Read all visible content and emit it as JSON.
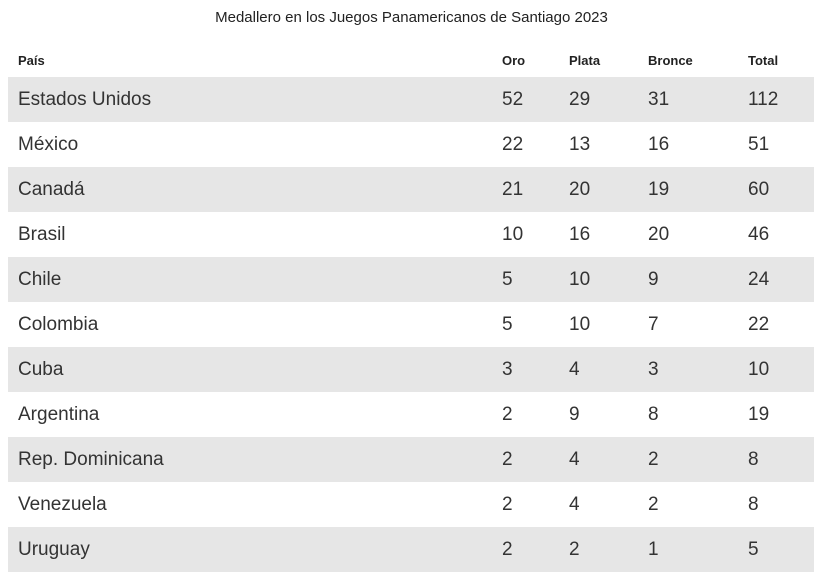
{
  "chart_data": {
    "type": "table",
    "title": "Medallero en los Juegos Panamericanos de Santiago 2023",
    "columns": [
      "País",
      "Oro",
      "Plata",
      "Bronce",
      "Total"
    ],
    "rows": [
      [
        "Estados Unidos",
        "52",
        "29",
        "31",
        "112"
      ],
      [
        "México",
        "22",
        "13",
        "16",
        "51"
      ],
      [
        "Canadá",
        "21",
        "20",
        "19",
        "60"
      ],
      [
        "Brasil",
        "10",
        "16",
        "20",
        "46"
      ],
      [
        "Chile",
        "5",
        "10",
        "9",
        "24"
      ],
      [
        "Colombia",
        "5",
        "10",
        "7",
        "22"
      ],
      [
        "Cuba",
        "3",
        "4",
        "3",
        "10"
      ],
      [
        "Argentina",
        "2",
        "9",
        "8",
        "19"
      ],
      [
        "Rep. Dominicana",
        "2",
        "4",
        "2",
        "8"
      ],
      [
        "Venezuela",
        "2",
        "4",
        "2",
        "8"
      ],
      [
        "Uruguay",
        "2",
        "2",
        "1",
        "5"
      ]
    ]
  },
  "colors": {
    "stripe": "#e6e6e6",
    "text": "#333333"
  }
}
